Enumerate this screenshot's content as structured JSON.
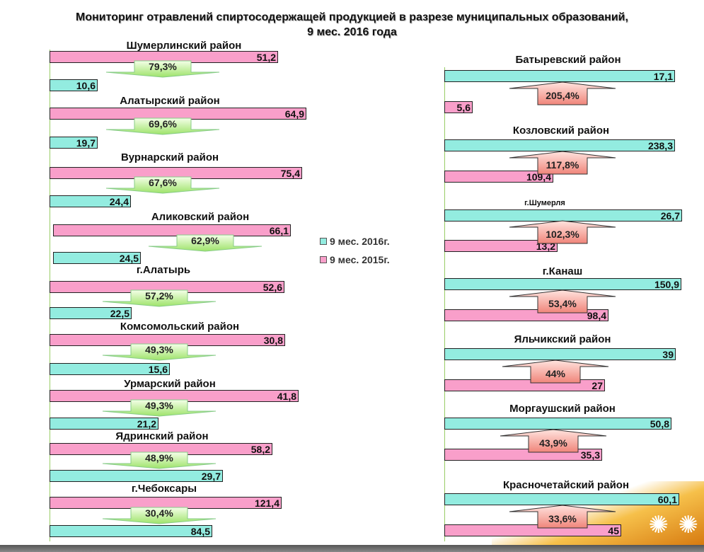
{
  "chart_data": {
    "type": "bar",
    "title": "Мониторинг отравлений спиртосодержащей продукцией в разрезе муниципальных образований,",
    "subtitle": "9 мес. 2016 года",
    "legend": [
      "9 мес. 2016г.",
      "9 мес. 2015г."
    ],
    "legend_placement": "center",
    "colors": {
      "2016": "#93ece0",
      "2015": "#f99fca",
      "decrease": "#b8f08a",
      "increase": "#f7a69a"
    },
    "decreasing": [
      {
        "name": "Шумерлинский район",
        "v2015": "51,2",
        "v2016": "10,6",
        "change": "79,3%"
      },
      {
        "name": "Алатырский район",
        "v2015": "64,9",
        "v2016": "19,7",
        "change": "69,6%"
      },
      {
        "name": "Вурнарский район",
        "v2015": "75,4",
        "v2016": "24,4",
        "change": "67,6%"
      },
      {
        "name": "Аликовский район",
        "v2015": "66,1",
        "v2016": "24,5",
        "change": "62,9%"
      },
      {
        "name": "г.Алатырь",
        "v2015": "52,6",
        "v2016": "22,5",
        "change": "57,2%"
      },
      {
        "name": "Комсомольский район",
        "v2015": "30,8",
        "v2016": "15,6",
        "change": "49,3%"
      },
      {
        "name": "Урмарский район",
        "v2015": "41,8",
        "v2016": "21,2",
        "change": "49,3%"
      },
      {
        "name": "Ядринский район",
        "v2015": "58,2",
        "v2016": "29,7",
        "change": "48,9%"
      },
      {
        "name": "г.Чебоксары",
        "v2015": "121,4",
        "v2016": "84,5",
        "change": "30,4%"
      }
    ],
    "increasing": [
      {
        "name": "Батыревский район",
        "v2016": "17,1",
        "v2015": "5,6",
        "change": "205,4%"
      },
      {
        "name": "Козловский район",
        "v2016": "238,3",
        "v2015": "109,4",
        "change": "117,8%"
      },
      {
        "name": "г.Шумерля",
        "v2016": "26,7",
        "v2015": "13,2",
        "change": "102,3%"
      },
      {
        "name": "г.Канаш",
        "v2016": "150,9",
        "v2015": "98,4",
        "change": "53,4%"
      },
      {
        "name": "Яльчикский район",
        "v2016": "39",
        "v2015": "27",
        "change": "44%"
      },
      {
        "name": "Моргаушский район",
        "v2016": "50,8",
        "v2015": "35,3",
        "change": "43,9%"
      },
      {
        "name": "Красночетайский район",
        "v2016": "60,1",
        "v2015": "45",
        "change": "33,6%"
      }
    ]
  }
}
